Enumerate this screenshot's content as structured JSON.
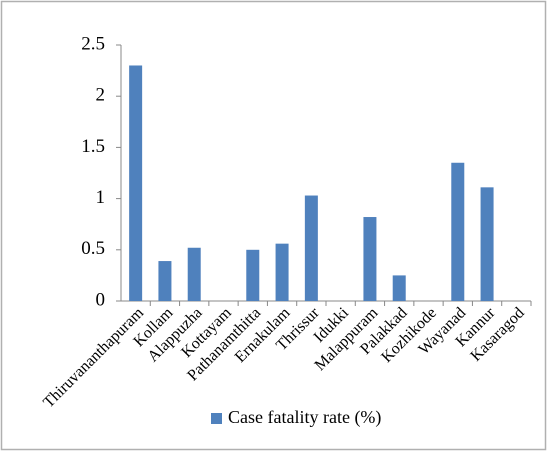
{
  "chart_data": {
    "type": "bar",
    "categories": [
      "Thiruvananthapuram",
      "Kollam",
      "Alappuzha",
      "Kottayam",
      "Pathanamthitta",
      "Ernakulam",
      "Thrissur",
      "Idukki",
      "Malappuram",
      "Palakkad",
      "Kozhikode",
      "Wayanad",
      "Kannur",
      "Kasaragod"
    ],
    "series": [
      {
        "name": "Case fatality rate (%)",
        "color": "#4f81bd",
        "values": [
          2.3,
          0.39,
          0.52,
          0,
          0.5,
          0.56,
          1.03,
          0,
          0.82,
          0.25,
          0,
          1.35,
          1.11,
          0
        ]
      }
    ],
    "ylim": [
      0,
      2.5
    ],
    "yticks": [
      0,
      0.5,
      1,
      1.5,
      2,
      2.5
    ],
    "grid": false,
    "legend": "bottom"
  }
}
